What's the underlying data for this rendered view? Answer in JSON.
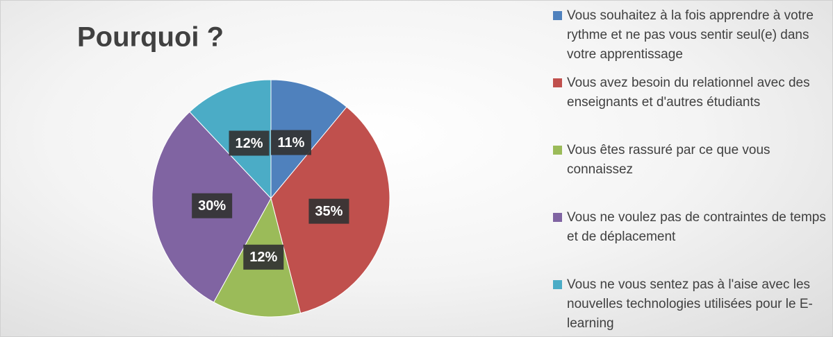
{
  "chart_data": {
    "type": "pie",
    "title": "Pourquoi ?",
    "categories": [
      "Vous souhaitez à la fois apprendre à votre rythme et ne pas vous sentir seul(e) dans votre apprentissage",
      "Vous avez besoin du relationnel avec des enseignants et d'autres étudiants",
      "Vous êtes rassuré par ce que vous connaissez",
      "Vous ne voulez pas de contraintes de temps et de déplacement",
      "Vous ne vous sentez pas à l'aise avec les nouvelles technologies utilisées pour le E-learning"
    ],
    "values": [
      11,
      35,
      12,
      30,
      12
    ],
    "value_labels": [
      "11%",
      "35%",
      "12%",
      "30%",
      "12%"
    ],
    "colors": [
      "#4f81bd",
      "#c0504d",
      "#9bbb59",
      "#8064a2",
      "#4bacc6"
    ],
    "legend": "right"
  }
}
